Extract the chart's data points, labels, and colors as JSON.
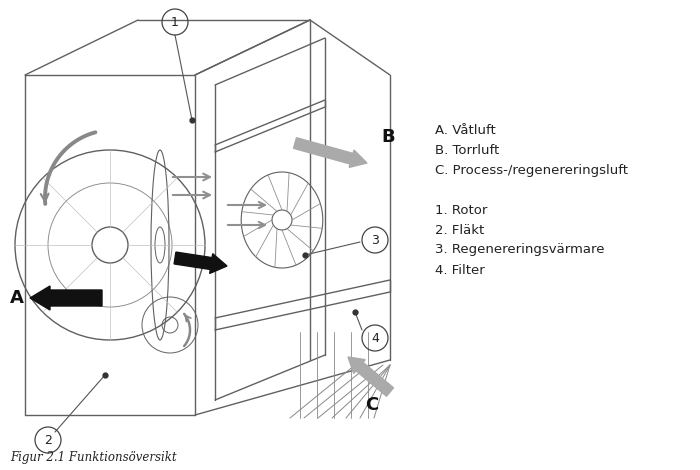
{
  "caption": "Figur 2.1 Funktionsöversikt",
  "legend_lines": [
    "A. Våtluft",
    "B. Torrluft",
    "C. Process-/regenereringsluft",
    "",
    "1. Rotor",
    "2. Fläkt",
    "3. Regenereringsvärmare",
    "4. Filter"
  ],
  "bg_color": "#ffffff",
  "line_color": "#606060",
  "font_size_legend": 9.5,
  "font_size_caption": 8.5
}
